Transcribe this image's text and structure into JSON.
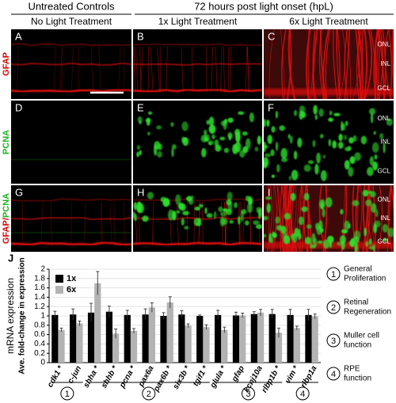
{
  "figure": {
    "group_headers": [
      "Untreated Controls",
      "72 hours post light onset (hpL)"
    ],
    "column_headers": [
      "No Light Treatment",
      "1x Light Treatment",
      "6x Light Treatment"
    ],
    "row_labels": [
      [
        "GFAP"
      ],
      [
        "PCNA"
      ],
      [
        "GFAP/",
        "PCNA"
      ]
    ],
    "panel_letters": [
      "A",
      "B",
      "C",
      "D",
      "E",
      "F",
      "G",
      "H",
      "I"
    ],
    "layer_labels": [
      "ONL",
      "INL",
      "GCL"
    ]
  },
  "chart_data": {
    "type": "bar",
    "panel_letter": "J",
    "ylabel": [
      "mRNA expression",
      "Ave. fold-change in expression"
    ],
    "categories": [
      "cdk1 *",
      "c-jun",
      "shha *",
      "shhb *",
      "pcna *",
      "pax6a",
      "pax6b *",
      "six3b *",
      "tgif1 *",
      "glula *",
      "gfap",
      "kcnj10a",
      "rlbp1b *",
      "vim *",
      "rlbp1a"
    ],
    "series": [
      {
        "name": "1x",
        "color": "#000000",
        "values": [
          1.02,
          1.03,
          1.07,
          1.09,
          1.02,
          1.03,
          1.0,
          1.03,
          1.0,
          1.02,
          1.01,
          1.04,
          1.04,
          1.02,
          1.02
        ],
        "errors": [
          0.08,
          0.12,
          0.2,
          0.12,
          0.1,
          0.12,
          0.07,
          0.08,
          0.02,
          0.1,
          0.07,
          0.05,
          0.1,
          0.12,
          0.12
        ]
      },
      {
        "name": "6x",
        "color": "#b3b3b3",
        "values": [
          0.7,
          0.84,
          1.7,
          0.62,
          0.68,
          1.18,
          1.29,
          0.79,
          0.76,
          0.7,
          1.01,
          1.07,
          0.64,
          0.74,
          0.99
        ],
        "errors": [
          0.04,
          0.05,
          0.25,
          0.1,
          0.05,
          0.1,
          0.12,
          0.04,
          0.05,
          0.06,
          0.05,
          0.07,
          0.1,
          0.04,
          0.05
        ]
      }
    ],
    "ylim": [
      0,
      2
    ],
    "yticks": [
      0,
      0.2,
      0.4,
      0.6,
      0.8,
      1,
      1.2,
      1.4,
      1.6,
      1.8,
      2
    ],
    "grid": true,
    "legend": "upper left",
    "groups": [
      {
        "number": "1",
        "lines": [
          "General",
          "Proliferation"
        ]
      },
      {
        "number": "2",
        "lines": [
          "Retinal",
          "Regeneration"
        ]
      },
      {
        "number": "3",
        "lines": [
          "Muller cell",
          "function"
        ]
      },
      {
        "number": "4",
        "lines": [
          "RPE",
          "function"
        ]
      }
    ]
  }
}
